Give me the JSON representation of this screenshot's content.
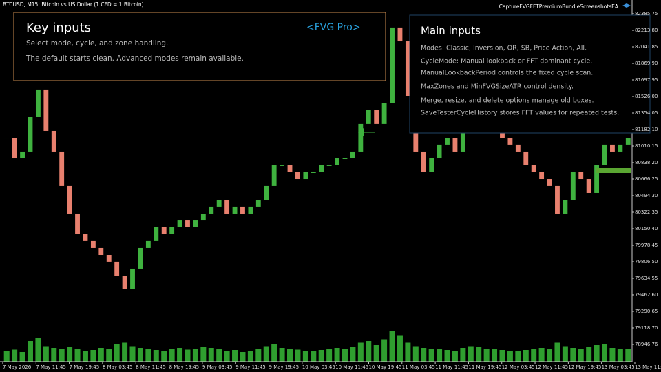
{
  "window": {
    "symbol": "BTCUSD, M15:  Bitcoin vs US Dollar (1 CFD = 1 Bitcoin)",
    "ea_name": "CaptureFVGFFTPremiumBundleScreenshotsEA"
  },
  "left_panel": {
    "title": "Key inputs",
    "badge": "<FVG Pro>",
    "lines": [
      "Select mode, cycle, and zone handling.",
      "The default starts clean. Advanced modes remain available."
    ]
  },
  "right_panel": {
    "title": "Main inputs",
    "lines": [
      "Modes: Classic, Inversion, OR, SB, Price Action, All.",
      "CycleMode: Manual lookback or FFT dominant cycle.",
      "ManualLookbackPeriod controls the fixed cycle scan.",
      "MaxZones and MinFVGSizeATR control density.",
      "Merge, resize, and delete options manage old boxes.",
      "SaveTesterCycleHistory stores FFT values for repeated tests."
    ]
  },
  "chart_data": {
    "type": "candlestick",
    "up_color": "#3fb23f",
    "down_color": "#e8806e",
    "volume_color": "#2f9e2f",
    "ylim": [
      78767.5,
      82529
    ],
    "yticks": [
      {
        "value": 82385.75,
        "label": "82385.75"
      },
      {
        "value": 82213.8,
        "label": "82213.80"
      },
      {
        "value": 82041.85,
        "label": "82041.85"
      },
      {
        "value": 81869.9,
        "label": "81869.90"
      },
      {
        "value": 81697.95,
        "label": "81697.95"
      },
      {
        "value": 81526,
        "label": "81526.00"
      },
      {
        "value": 81354.05,
        "label": "81354.05"
      },
      {
        "value": 81182.1,
        "label": "81182.10"
      },
      {
        "value": 81010.15,
        "label": "81010.15"
      },
      {
        "value": 80838.2,
        "label": "80838.20"
      },
      {
        "value": 80666.25,
        "label": "80666.25"
      },
      {
        "value": 80494.3,
        "label": "80494.30"
      },
      {
        "value": 80322.35,
        "label": "80322.35"
      },
      {
        "value": 80150.4,
        "label": "80150.40"
      },
      {
        "value": 79978.45,
        "label": "79978.45"
      },
      {
        "value": 79806.5,
        "label": "79806.50"
      },
      {
        "value": 79634.55,
        "label": "79634.55"
      },
      {
        "value": 79462.6,
        "label": "79462.60"
      },
      {
        "value": 79290.65,
        "label": "79290.65"
      },
      {
        "value": 79118.7,
        "label": "79118.70"
      },
      {
        "value": 78946.76,
        "label": "78946.76"
      }
    ],
    "time_labels": [
      "7 May 2026",
      "7 May 11:45",
      "7 May 19:45",
      "8 May 03:45",
      "8 May 11:45",
      "8 May 19:45",
      "9 May 03:45",
      "9 May 11:45",
      "9 May 19:45",
      "10 May 03:45",
      "10 May 11:45",
      "10 May 19:45",
      "11 May 03:45",
      "11 May 11:45",
      "11 May 19:45",
      "12 May 03:45",
      "12 May 11:45",
      "12 May 19:45",
      "13 May 03:45",
      "13 May 11:45"
    ],
    "close": [
      81096,
      80881,
      80953,
      81311,
      81598,
      81168,
      80953,
      80595,
      80308,
      80093,
      80022,
      79950,
      79878,
      79807,
      79663,
      79520,
      79735,
      79950,
      80022,
      80165,
      80093,
      80165,
      80236,
      80165,
      80236,
      80308,
      80380,
      80451,
      80308,
      80380,
      80308,
      80380,
      80451,
      80595,
      80810,
      80810,
      80738,
      80666,
      80738,
      80738,
      80810,
      80810,
      80881,
      80881,
      80953,
      81240,
      81383,
      81240,
      81455,
      82243,
      82099,
      81526,
      80953,
      80738,
      80881,
      81025,
      81096,
      80953,
      81168,
      81311,
      81383,
      81311,
      81240,
      81096,
      81025,
      80953,
      80810,
      80738,
      80666,
      80595,
      80308,
      80451,
      80738,
      80666,
      80523,
      80810,
      81025,
      80953,
      81025,
      81096
    ],
    "volume": [
      30,
      35,
      28,
      60,
      70,
      45,
      40,
      38,
      42,
      36,
      30,
      34,
      40,
      38,
      50,
      55,
      45,
      40,
      36,
      34,
      30,
      38,
      40,
      35,
      36,
      42,
      40,
      38,
      30,
      34,
      28,
      30,
      36,
      45,
      52,
      40,
      38,
      35,
      30,
      32,
      34,
      36,
      40,
      38,
      42,
      55,
      60,
      48,
      65,
      90,
      75,
      55,
      45,
      40,
      38,
      36,
      34,
      32,
      40,
      45,
      42,
      38,
      36,
      34,
      32,
      30,
      34,
      36,
      40,
      38,
      55,
      45,
      40,
      38,
      42,
      48,
      52,
      40,
      38,
      36
    ],
    "vlim": [
      0,
      100
    ]
  }
}
